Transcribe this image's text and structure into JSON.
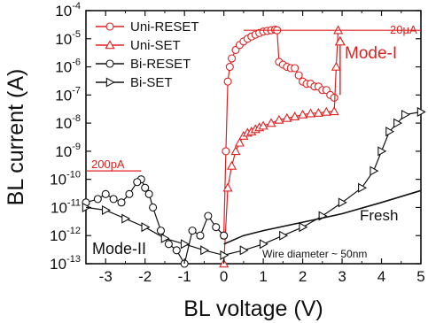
{
  "chart_data": {
    "type": "line",
    "xlabel": "BL voltage (V)",
    "ylabel": "BL current (A)",
    "xlim": [
      -3.5,
      5
    ],
    "ylim_log10": [
      -13,
      -4
    ],
    "yscale": "log",
    "x_ticks": [
      "-3",
      "-2",
      "-1",
      "0",
      "1",
      "2",
      "3",
      "4",
      "5"
    ],
    "y_ticks": [
      {
        "base": "10",
        "exp": "-4"
      },
      {
        "base": "10",
        "exp": "-5"
      },
      {
        "base": "10",
        "exp": "-6"
      },
      {
        "base": "10",
        "exp": "-7"
      },
      {
        "base": "10",
        "exp": "-8"
      },
      {
        "base": "10",
        "exp": "-9"
      },
      {
        "base": "10",
        "exp": "-10"
      },
      {
        "base": "10",
        "exp": "-11"
      },
      {
        "base": "10",
        "exp": "-12"
      },
      {
        "base": "10",
        "exp": "-13"
      }
    ],
    "legend_position": "top-left",
    "series": [
      {
        "name": "Uni-RESET",
        "color": "#e02020",
        "marker": "circle",
        "points": [
          [
            0.0,
            1e-12
          ],
          [
            0.05,
            1e-09
          ],
          [
            0.1,
            3e-07
          ],
          [
            0.15,
            1e-06
          ],
          [
            0.2,
            2e-06
          ],
          [
            0.3,
            4e-06
          ],
          [
            0.4,
            6e-06
          ],
          [
            0.5,
            8e-06
          ],
          [
            0.6,
            1e-05
          ],
          [
            0.7,
            1.2e-05
          ],
          [
            0.8,
            1.4e-05
          ],
          [
            0.9,
            1.6e-05
          ],
          [
            1.0,
            1.8e-05
          ],
          [
            1.1,
            1.9e-05
          ],
          [
            1.2,
            2e-05
          ],
          [
            1.3,
            2.1e-05
          ],
          [
            1.35,
            2e-05
          ],
          [
            1.4,
            1.5e-06
          ],
          [
            1.5,
            1.2e-06
          ],
          [
            1.6,
            1e-06
          ],
          [
            1.7,
            9e-07
          ],
          [
            1.8,
            9e-07
          ],
          [
            1.9,
            5e-07
          ],
          [
            2.0,
            3e-07
          ],
          [
            2.1,
            2.5e-07
          ],
          [
            2.2,
            2.5e-07
          ],
          [
            2.3,
            2e-07
          ],
          [
            2.4,
            2e-07
          ],
          [
            2.5,
            1.5e-07
          ],
          [
            2.6,
            1.5e-07
          ],
          [
            2.7,
            1e-07
          ],
          [
            2.8,
            8e-08
          ]
        ]
      },
      {
        "name": "Uni-SET",
        "color": "#e02020",
        "marker": "triangle-up",
        "points": [
          [
            0.0,
            1e-13
          ],
          [
            0.1,
            5e-11
          ],
          [
            0.2,
            3e-10
          ],
          [
            0.3,
            1e-09
          ],
          [
            0.4,
            2e-09
          ],
          [
            0.5,
            3.5e-09
          ],
          [
            0.6,
            4.5e-09
          ],
          [
            0.7,
            5e-09
          ],
          [
            0.8,
            6e-09
          ],
          [
            0.9,
            7e-09
          ],
          [
            1.0,
            8e-09
          ],
          [
            1.2,
            1e-08
          ],
          [
            1.4,
            1.3e-08
          ],
          [
            1.6,
            1.5e-08
          ],
          [
            1.8,
            1.7e-08
          ],
          [
            2.0,
            2e-08
          ],
          [
            2.2,
            2.2e-08
          ],
          [
            2.4,
            2.3e-08
          ],
          [
            2.6,
            2.5e-08
          ],
          [
            2.8,
            2.6e-08
          ],
          [
            2.85,
            1e-06
          ],
          [
            2.9,
            2e-05
          ]
        ]
      },
      {
        "name": "Bi-RESET",
        "color": "#111111",
        "marker": "circle",
        "points": [
          [
            0.0,
            1e-12
          ],
          [
            -0.2,
            2e-12
          ],
          [
            -0.4,
            5e-12
          ],
          [
            -0.6,
            1e-12
          ],
          [
            -0.8,
            1.5e-12
          ],
          [
            -1.0,
            1e-13
          ],
          [
            -1.2,
            3e-13
          ],
          [
            -1.4,
            5e-13
          ],
          [
            -1.6,
            1.5e-12
          ],
          [
            -1.8,
            1e-11
          ],
          [
            -1.9,
            3e-11
          ],
          [
            -2.0,
            5e-11
          ],
          [
            -2.1,
            1e-10
          ],
          [
            -2.2,
            8e-11
          ],
          [
            -2.4,
            3e-11
          ],
          [
            -2.6,
            1.5e-11
          ],
          [
            -2.8,
            2e-11
          ],
          [
            -3.0,
            3e-11
          ],
          [
            -3.2,
            2e-11
          ],
          [
            -3.5,
            1.5e-11
          ]
        ]
      },
      {
        "name": "Bi-SET",
        "color": "#111111",
        "marker": "triangle-right",
        "points": [
          [
            -3.5,
            1e-11
          ],
          [
            -3.0,
            8e-12
          ],
          [
            -2.5,
            4e-12
          ],
          [
            -2.0,
            2e-12
          ],
          [
            -1.5,
            8e-13
          ],
          [
            -1.0,
            5e-13
          ],
          [
            -0.5,
            3e-13
          ],
          [
            0.0,
            2e-13
          ],
          [
            0.5,
            3e-13
          ],
          [
            1.0,
            5e-13
          ],
          [
            1.5,
            1e-12
          ],
          [
            2.0,
            2e-12
          ],
          [
            2.5,
            5e-12
          ],
          [
            3.0,
            1.5e-11
          ],
          [
            3.5,
            5e-11
          ],
          [
            3.8,
            2e-10
          ],
          [
            4.0,
            1e-09
          ],
          [
            4.2,
            5e-09
          ],
          [
            4.4,
            1e-08
          ],
          [
            4.6,
            2e-08
          ],
          [
            5.0,
            2.5e-08
          ]
        ]
      },
      {
        "name": "",
        "color": "#111111",
        "marker": "none",
        "label": "Fresh",
        "points": [
          [
            0.0,
            5e-13
          ],
          [
            0.5,
            1e-12
          ],
          [
            1.0,
            1.5e-12
          ],
          [
            2.0,
            3e-12
          ],
          [
            3.0,
            6e-12
          ],
          [
            4.0,
            1.5e-11
          ],
          [
            5.0,
            4e-11
          ]
        ]
      }
    ],
    "annotations": {
      "compliance_high": "20μA",
      "compliance_low": "200pA",
      "mode_1": "Mode-I",
      "mode_2": "Mode-II",
      "fresh": "Fresh",
      "wire_note": "Wire diameter ~ 50nm"
    }
  }
}
